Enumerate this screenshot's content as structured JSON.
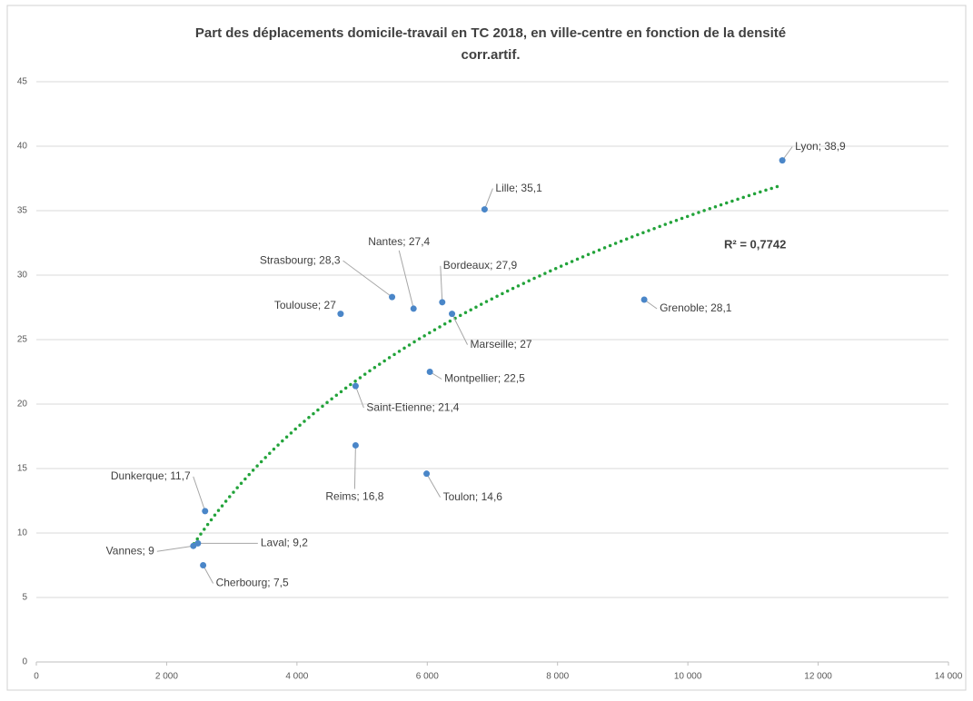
{
  "chart_data": {
    "type": "scatter",
    "title": [
      "Part des déplacements domicile-travail en TC 2018, en ville-centre en fonction de la densité",
      "corr.artif."
    ],
    "x": [
      11450,
      6880,
      5790,
      5460,
      6230,
      4670,
      6380,
      9330,
      6040,
      4900,
      4900,
      5990,
      2590,
      2480,
      2410,
      2560
    ],
    "values": [
      38.9,
      35.1,
      27.4,
      28.3,
      27.9,
      27,
      27,
      28.1,
      22.5,
      21.4,
      16.8,
      14.6,
      11.7,
      9.2,
      9,
      7.5
    ],
    "value_labels": [
      "Lyon; 38,9",
      "Lille; 35,1",
      "Nantes; 27,4",
      "Strasbourg; 28,3",
      "Bordeaux; 27,9",
      "Toulouse; 27",
      "Marseille; 27",
      "Grenoble; 28,1",
      "Montpellier; 22,5",
      "Saint-Etienne; 21,4",
      "Reims; 16,8",
      "Toulon; 14,6",
      "Dunkerque; 11,7",
      "Laval; 9,2",
      "Vannes; 9",
      "Cherbourg; 7,5"
    ],
    "label_colors": [
      "#e8251f",
      "#404040",
      "#e8251f",
      "#404040",
      "#404040",
      "#404040",
      "#404040",
      "#e8251f",
      "#404040",
      "#404040",
      "#e8251f",
      "#e8251f",
      "#404040",
      "#404040",
      "#404040",
      "#e8251f"
    ],
    "color": "#4a86c8",
    "xlim": [
      0,
      14000
    ],
    "xticks": [
      0,
      {
        "value": 2000,
        "label": "2 000"
      },
      {
        "value": 4000,
        "label": "4 000"
      },
      {
        "value": 6000,
        "label": "6 000"
      },
      {
        "value": 8000,
        "label": "8 000"
      },
      {
        "value": 10000,
        "label": "10 000"
      },
      {
        "value": 12000,
        "label": "12 000"
      },
      {
        "value": 14000,
        "label": "14 000"
      }
    ],
    "ylim": [
      0,
      45
    ],
    "yticks": [
      0,
      5,
      10,
      15,
      20,
      25,
      30,
      35,
      40,
      45
    ],
    "grid": true,
    "trendline": {
      "type": "log",
      "a": 17.9,
      "b": -130.3,
      "xrange": [
        2420,
        11380
      ],
      "color": "#22a33a",
      "label": "R² = 0,7742"
    }
  }
}
